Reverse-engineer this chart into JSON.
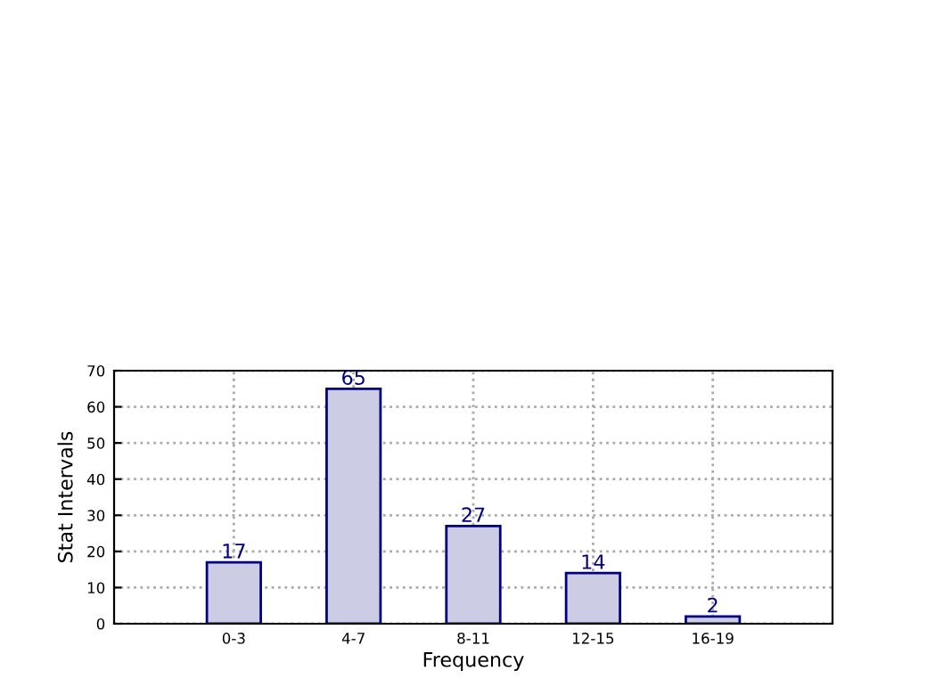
{
  "chart_data": {
    "type": "bar",
    "xlabel": "Frequency",
    "ylabel": "Stat Intervals",
    "categories": [
      "0-3",
      "4-7",
      "8-11",
      "12-15",
      "16-19"
    ],
    "series": [
      {
        "color": "#cccce4",
        "values": [
          17,
          65,
          27,
          14,
          2
        ]
      }
    ],
    "ylim": [
      0,
      70
    ],
    "yticks": [
      0,
      10,
      20,
      30,
      40,
      50,
      60,
      70
    ],
    "grid": true,
    "data_labels": true
  }
}
